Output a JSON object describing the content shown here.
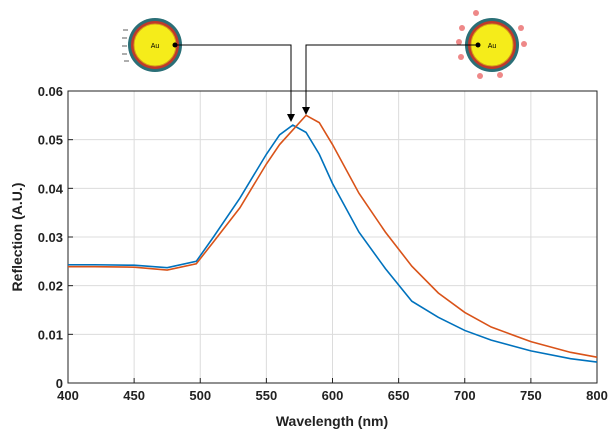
{
  "chart_data": {
    "type": "line",
    "xlabel": "Wavelength (nm)",
    "ylabel": "Reflection (A.U.)",
    "annotations": [
      "Au",
      "Au"
    ],
    "x": [
      400,
      420,
      450,
      475,
      497,
      510,
      530,
      550,
      560,
      570,
      580,
      590,
      600,
      620,
      640,
      660,
      680,
      700,
      720,
      750,
      780,
      800
    ],
    "series": [
      {
        "color": "#0072bd",
        "values": [
          0.0243,
          0.0243,
          0.0242,
          0.0237,
          0.025,
          0.03,
          0.038,
          0.047,
          0.051,
          0.053,
          0.0515,
          0.047,
          0.041,
          0.031,
          0.0235,
          0.0168,
          0.0135,
          0.0108,
          0.0088,
          0.0066,
          0.005,
          0.0043
        ]
      },
      {
        "color": "#d95319",
        "values": [
          0.0239,
          0.0239,
          0.0238,
          0.0232,
          0.0245,
          0.029,
          0.036,
          0.045,
          0.049,
          0.052,
          0.055,
          0.0535,
          0.049,
          0.039,
          0.031,
          0.024,
          0.0185,
          0.0145,
          0.0115,
          0.0085,
          0.0063,
          0.0053
        ]
      }
    ],
    "xlim": [
      400,
      800
    ],
    "xticks": [
      400,
      450,
      500,
      550,
      600,
      650,
      700,
      750,
      800
    ],
    "ylim": [
      0,
      0.06
    ],
    "yticks": [
      0,
      0.01,
      0.02,
      0.03,
      0.04,
      0.05,
      0.06
    ],
    "grid": true
  }
}
